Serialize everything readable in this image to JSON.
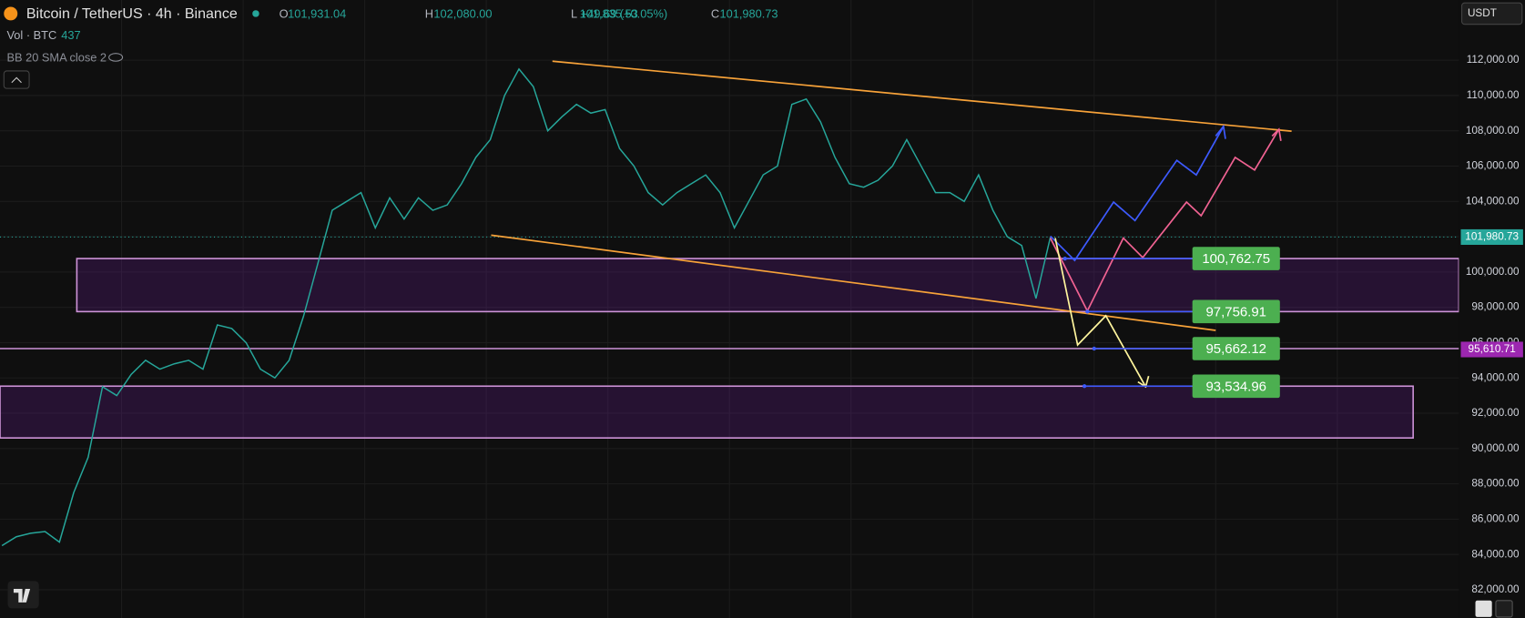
{
  "header": {
    "symbol": "Bitcoin / TetherUS · 4h · Binance",
    "ohlc": [
      {
        "key": "O",
        "value": "101,931.04"
      },
      {
        "key": "H",
        "value": "102,080.00"
      },
      {
        "key": "L",
        "value": "101,835.53"
      },
      {
        "key": "C",
        "value": "101,980.73"
      }
    ],
    "change": "+49.69 (+0.05%)"
  },
  "indicators": {
    "volume_label": "Vol · BTC",
    "volume_value": "437",
    "bollinger": "BB 20 SMA close 2"
  },
  "currency": "USDT",
  "chart_data": {
    "type": "line",
    "ylim": [
      80400,
      115410
    ],
    "yticks": [
      {
        "value": 82000,
        "label": "82,000.00"
      },
      {
        "value": 84000,
        "label": "84,000.00"
      },
      {
        "value": 86000,
        "label": "86,000.00"
      },
      {
        "value": 88000,
        "label": "88,000.00"
      },
      {
        "value": 90000,
        "label": "90,000.00"
      },
      {
        "value": 92000,
        "label": "92,000.00"
      },
      {
        "value": 94000,
        "label": "94,000.00"
      },
      {
        "value": 96000,
        "label": "96,000.00"
      },
      {
        "value": 98000,
        "label": "98,000.00"
      },
      {
        "value": 100000,
        "label": "100,000.00"
      },
      {
        "value": 102000,
        "label": "102,000.00"
      },
      {
        "value": 104000,
        "label": "104,000.00"
      },
      {
        "value": 106000,
        "label": "106,000.00"
      },
      {
        "value": 108000,
        "label": "108,000.00"
      },
      {
        "value": 110000,
        "label": "110,000.00"
      },
      {
        "value": 112000,
        "label": "112,000.00"
      }
    ],
    "grid": true,
    "color": "#26a69a",
    "values": [
      84500,
      85000,
      85200,
      85300,
      84700,
      87500,
      89500,
      93500,
      93000,
      94200,
      95000,
      94500,
      94800,
      95000,
      94500,
      97000,
      96800,
      96000,
      94500,
      94000,
      95000,
      97500,
      100500,
      103500,
      104000,
      104500,
      102500,
      104200,
      103000,
      104200,
      103500,
      103800,
      105000,
      106500,
      107500,
      110000,
      111500,
      110500,
      108000,
      108800,
      109500,
      109000,
      109200,
      107000,
      106000,
      104500,
      103800,
      104500,
      105000,
      105500,
      104500,
      102500,
      104000,
      105500,
      106000,
      109500,
      109800,
      108500,
      106500,
      105000,
      104800,
      105200,
      106000,
      107500,
      106000,
      104500,
      104500,
      104000,
      105500,
      103500,
      102000,
      101500,
      98500,
      101980.73
    ],
    "last_price": {
      "value": 101980.73,
      "label": "101,980.73"
    },
    "marker_price": {
      "value": 95610.71,
      "label": "95,610.71"
    },
    "levels": [
      {
        "value": 100762.75,
        "label": "100,762.75"
      },
      {
        "value": 97756.91,
        "label": "97,756.91"
      },
      {
        "value": 95662.12,
        "label": "95,662.12"
      },
      {
        "value": 93534.96,
        "label": "93,534.96"
      }
    ],
    "zones": [
      {
        "top": 100762.75,
        "bottom": 97756.91
      },
      {
        "top": 93534.96,
        "bottom": 90600
      }
    ]
  }
}
